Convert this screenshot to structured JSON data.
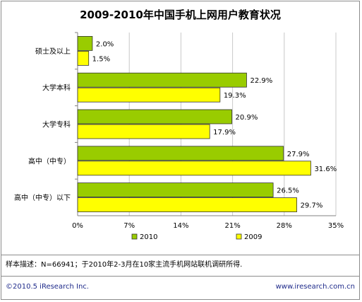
{
  "chart_data": {
    "type": "bar",
    "orientation": "horizontal",
    "title": "2009-2010年中国手机上网用户教育状况",
    "categories": [
      "硕士及以上",
      "大学本科",
      "大学专科",
      "高中（中专）",
      "高中（中专）以下"
    ],
    "series": [
      {
        "name": "2010",
        "color": "#99cc00",
        "values": [
          2.0,
          22.9,
          20.9,
          27.9,
          26.5
        ],
        "labels": [
          "2.0%",
          "22.9%",
          "20.9%",
          "27.9%",
          "26.5%"
        ]
      },
      {
        "name": "2009",
        "color": "#ffff00",
        "values": [
          1.5,
          19.3,
          17.9,
          31.6,
          29.7
        ],
        "labels": [
          "1.5%",
          "19.3%",
          "17.9%",
          "31.6%",
          "29.7%"
        ]
      }
    ],
    "xlim": [
      0,
      35
    ],
    "xticks": [
      "0%",
      "7%",
      "14%",
      "21%",
      "28%",
      "35%"
    ],
    "grid": true,
    "legend": "bottom"
  },
  "note": "样本描述：N=66941；于2010年2-3月在10家主流手机网站联机调研所得.",
  "footer": {
    "left": "©2010.5 iResearch Inc.",
    "right": "www.iresearch.com.cn"
  }
}
